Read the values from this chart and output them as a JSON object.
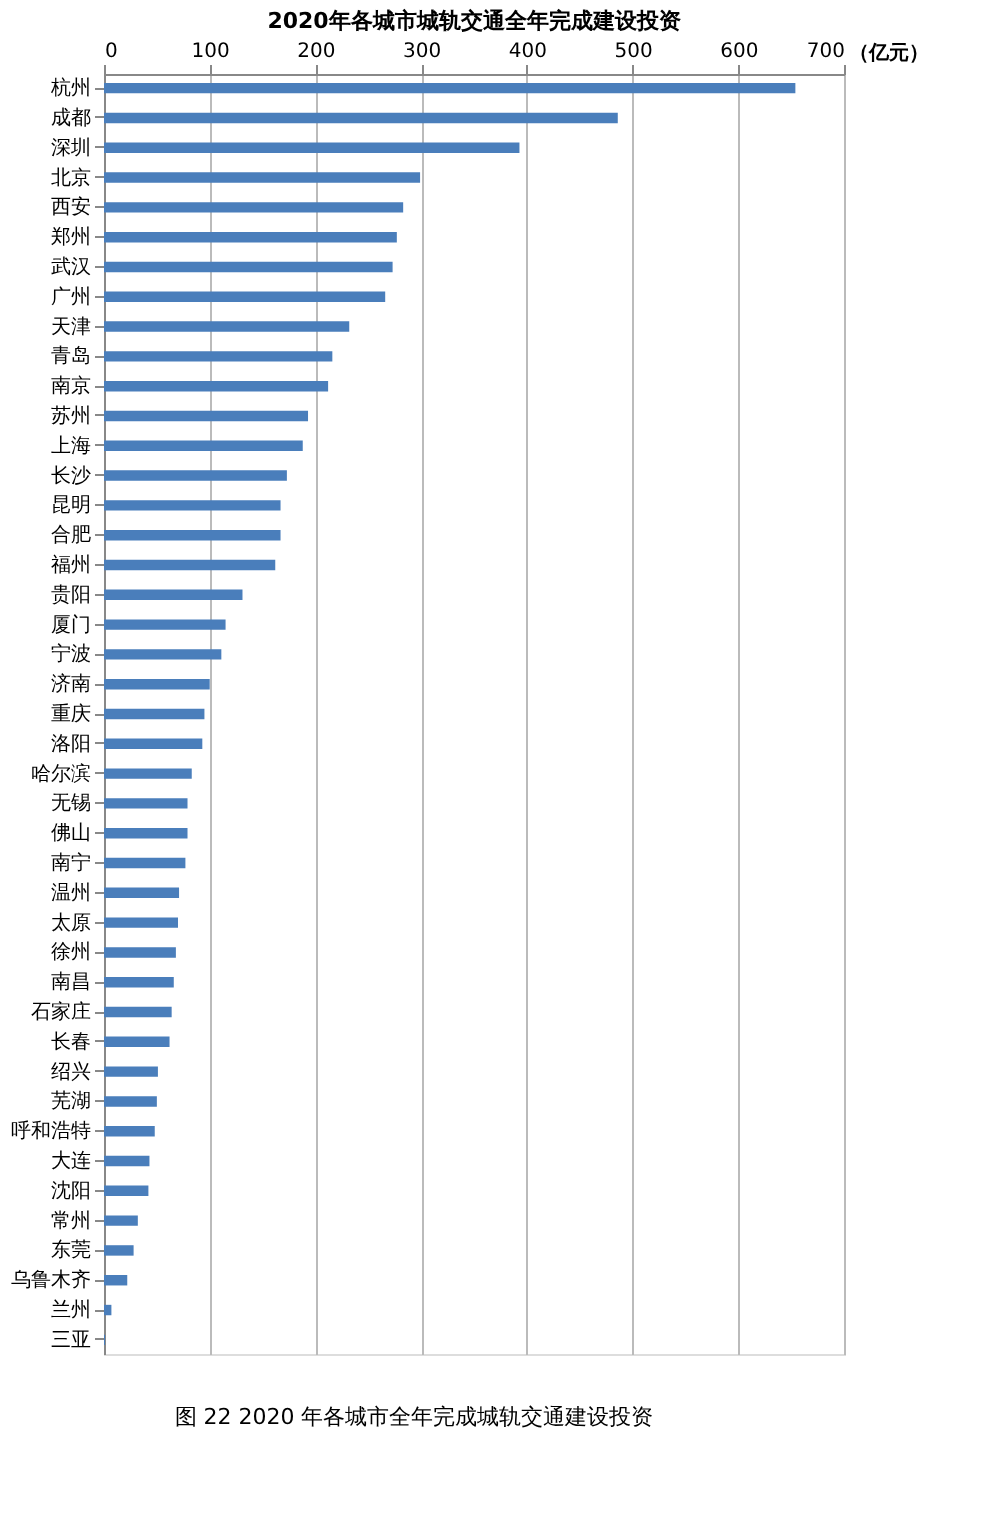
{
  "chart_data": {
    "type": "bar",
    "orientation": "horizontal",
    "title": "2020年各城市城轨交通全年完成建设投资",
    "xlabel": "（亿元）",
    "categories": [
      "杭州",
      "成都",
      "深圳",
      "北京",
      "西安",
      "郑州",
      "武汉",
      "广州",
      "天津",
      "青岛",
      "南京",
      "苏州",
      "上海",
      "长沙",
      "昆明",
      "合肥",
      "福州",
      "贵阳",
      "厦门",
      "宁波",
      "济南",
      "重庆",
      "洛阳",
      "哈尔滨",
      "无锡",
      "佛山",
      "南宁",
      "温州",
      "太原",
      "徐州",
      "南昌",
      "石家庄",
      "长春",
      "绍兴",
      "芜湖",
      "呼和浩特",
      "大连",
      "沈阳",
      "常州",
      "东莞",
      "乌鲁木齐",
      "兰州",
      "三亚"
    ],
    "values": [
      654,
      486,
      393,
      299,
      283,
      277,
      273,
      266,
      232,
      216,
      212,
      193,
      188,
      173,
      167,
      167,
      162,
      131,
      115,
      111,
      100,
      95,
      93,
      83,
      79,
      79,
      77,
      71,
      70,
      68,
      66,
      64,
      62,
      51,
      50,
      48,
      43,
      42,
      32,
      28,
      22,
      7,
      1
    ],
    "color": "#4a7ebb",
    "xlim": [
      0,
      700
    ],
    "xticks": [
      0,
      100,
      200,
      300,
      400,
      500,
      600,
      700
    ],
    "grid": "x",
    "annotations": [
      "图 22   2020 年各城市全年完成城轨交通建设投资"
    ]
  }
}
